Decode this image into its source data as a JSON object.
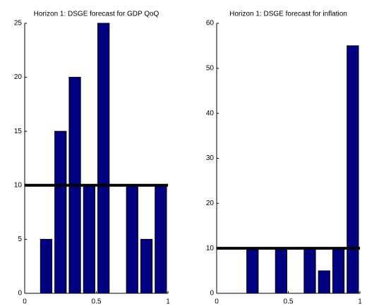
{
  "chart_data": [
    {
      "type": "histogram",
      "title": "Horizon 1: DSGE forecast for GDP QoQ",
      "bins": [
        0,
        0.1,
        0.2,
        0.3,
        0.4,
        0.5,
        0.6,
        0.7,
        0.8,
        0.9,
        1
      ],
      "values": [
        0,
        5,
        15,
        20,
        10,
        25,
        0,
        10,
        5,
        10
      ],
      "color": "#000080",
      "reference_line": 10,
      "line_color": "#000000",
      "xlim": [
        0,
        1
      ],
      "xticks": [
        0,
        0.5,
        1
      ],
      "ylim": [
        0,
        25
      ],
      "yticks": [
        0,
        5,
        10,
        15,
        20,
        25
      ]
    },
    {
      "type": "histogram",
      "title": "Horizon 1: DSGE forecast for inflation",
      "bins": [
        0,
        0.1,
        0.2,
        0.3,
        0.4,
        0.5,
        0.6,
        0.7,
        0.8,
        0.9,
        1
      ],
      "values": [
        0,
        0,
        10,
        0,
        10,
        0,
        10,
        5,
        10,
        55
      ],
      "color": "#000080",
      "reference_line": 10,
      "line_color": "#000000",
      "xlim": [
        0,
        1
      ],
      "xticks": [
        0,
        0.5,
        1
      ],
      "ylim": [
        0,
        60
      ],
      "yticks": [
        0,
        10,
        20,
        30,
        40,
        50,
        60
      ]
    }
  ]
}
